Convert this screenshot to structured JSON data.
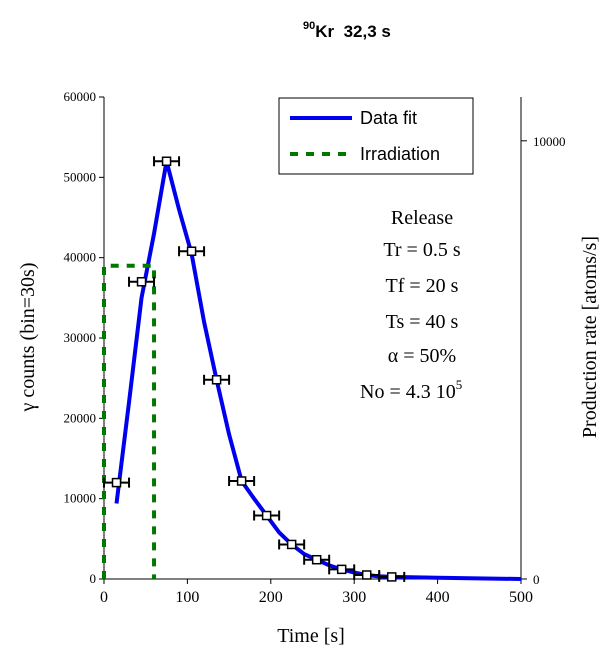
{
  "chart_data": {
    "type": "line",
    "title": {
      "mass": "90",
      "element": "Kr",
      "half_life": "  32,3 s"
    },
    "xlabel": "Time  [s]",
    "ylabel": "γ counts (bin=30s)",
    "y2label": "Production rate [atoms/s]",
    "xlim": [
      0,
      500
    ],
    "ylim": [
      0,
      60000
    ],
    "y2lim": [
      0,
      11000
    ],
    "x_ticks": [
      "0",
      "100",
      "200",
      "300",
      "400",
      "500"
    ],
    "y_ticks": [
      "0",
      "10000",
      "20000",
      "30000",
      "40000",
      "50000",
      "60000"
    ],
    "y2_ticks": [
      "0",
      "10000"
    ],
    "legend_position": "top-right",
    "series": [
      {
        "name": "Data fit",
        "style": "solid",
        "color": "#0000ee",
        "x": [
          15,
          30,
          45,
          60,
          75,
          90,
          105,
          120,
          135,
          150,
          165,
          180,
          195,
          210,
          225,
          240,
          255,
          270,
          285,
          300,
          315,
          330,
          345,
          400,
          500
        ],
        "y": [
          9400,
          22000,
          35000,
          43000,
          52000,
          46000,
          40500,
          32000,
          24800,
          18000,
          12200,
          10000,
          7900,
          5800,
          4300,
          3100,
          2400,
          1700,
          1200,
          800,
          500,
          330,
          260,
          150,
          0
        ]
      },
      {
        "name": "Irradiation",
        "style": "dashed",
        "color": "#007700",
        "x": [
          0,
          0,
          60,
          60
        ],
        "y": [
          0,
          39000,
          39000,
          0
        ]
      }
    ],
    "data_points": {
      "x": [
        15,
        45,
        75,
        105,
        135,
        165,
        195,
        225,
        255,
        285,
        315,
        345
      ],
      "y": [
        12000,
        37000,
        52000,
        40800,
        24800,
        12200,
        7900,
        4300,
        2400,
        1200,
        500,
        260
      ],
      "x_error": 15
    },
    "annotation": {
      "lines": [
        "Release",
        "Tr = 0.5 s",
        "Tf = 20 s",
        "Ts = 40 s",
        "α = 50%"
      ],
      "no_line": {
        "base": "No = 4.3 10",
        "exp": "5"
      }
    }
  }
}
